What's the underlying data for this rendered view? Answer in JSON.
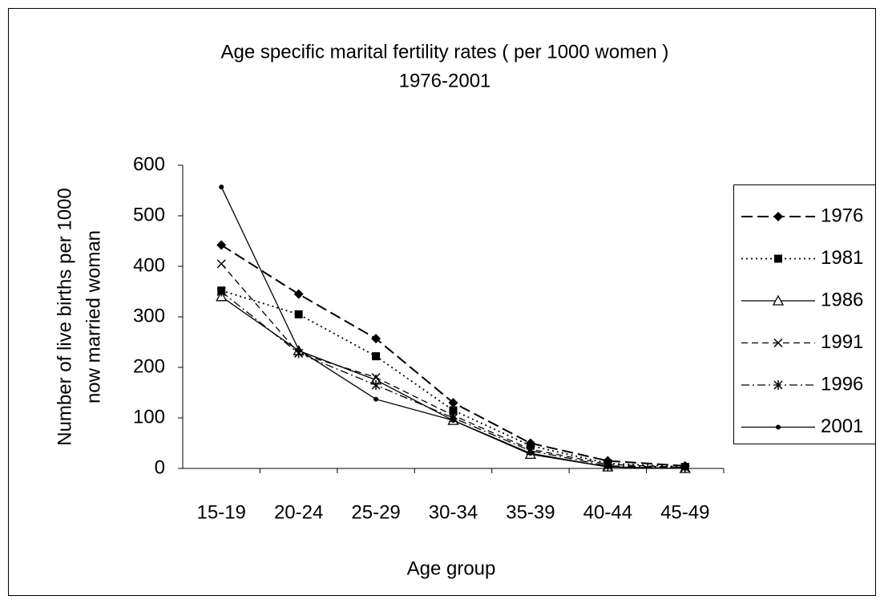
{
  "chart_data": {
    "type": "line",
    "title": [
      "Age specific marital fertility rates ( per 1000 women )",
      "1976-2001"
    ],
    "y_label": [
      "Number of live births per 1000",
      "now married woman"
    ],
    "x_label": "Age group",
    "categories": [
      "15-19",
      "20-24",
      "25-29",
      "30-34",
      "35-39",
      "40-44",
      "45-49"
    ],
    "ylim": [
      0,
      600
    ],
    "yticks": [
      0,
      100,
      200,
      300,
      400,
      500,
      600
    ],
    "legend": "right",
    "series": [
      {
        "name": "1976",
        "color": "#000000",
        "line_style": "long-dash",
        "marker": "diamond",
        "values": [
          442,
          345,
          257,
          130,
          50,
          15,
          5
        ]
      },
      {
        "name": "1981",
        "color": "#000000",
        "line_style": "dotted",
        "marker": "square",
        "values": [
          352,
          305,
          222,
          115,
          45,
          10,
          3
        ]
      },
      {
        "name": "1986",
        "color": "#000000",
        "line_style": "solid",
        "marker": "triangle",
        "values": [
          340,
          233,
          175,
          95,
          28,
          3,
          0
        ]
      },
      {
        "name": "1991",
        "color": "#000000",
        "line_style": "dashed",
        "marker": "x",
        "values": [
          405,
          228,
          180,
          105,
          38,
          8,
          2
        ]
      },
      {
        "name": "1996",
        "color": "#000000",
        "line_style": "dash-dot",
        "marker": "star",
        "values": [
          350,
          228,
          165,
          100,
          35,
          5,
          2
        ]
      },
      {
        "name": "2001",
        "color": "#000000",
        "line_style": "solid",
        "marker": "dot",
        "values": [
          557,
          235,
          137,
          95,
          30,
          3,
          0
        ]
      }
    ]
  }
}
